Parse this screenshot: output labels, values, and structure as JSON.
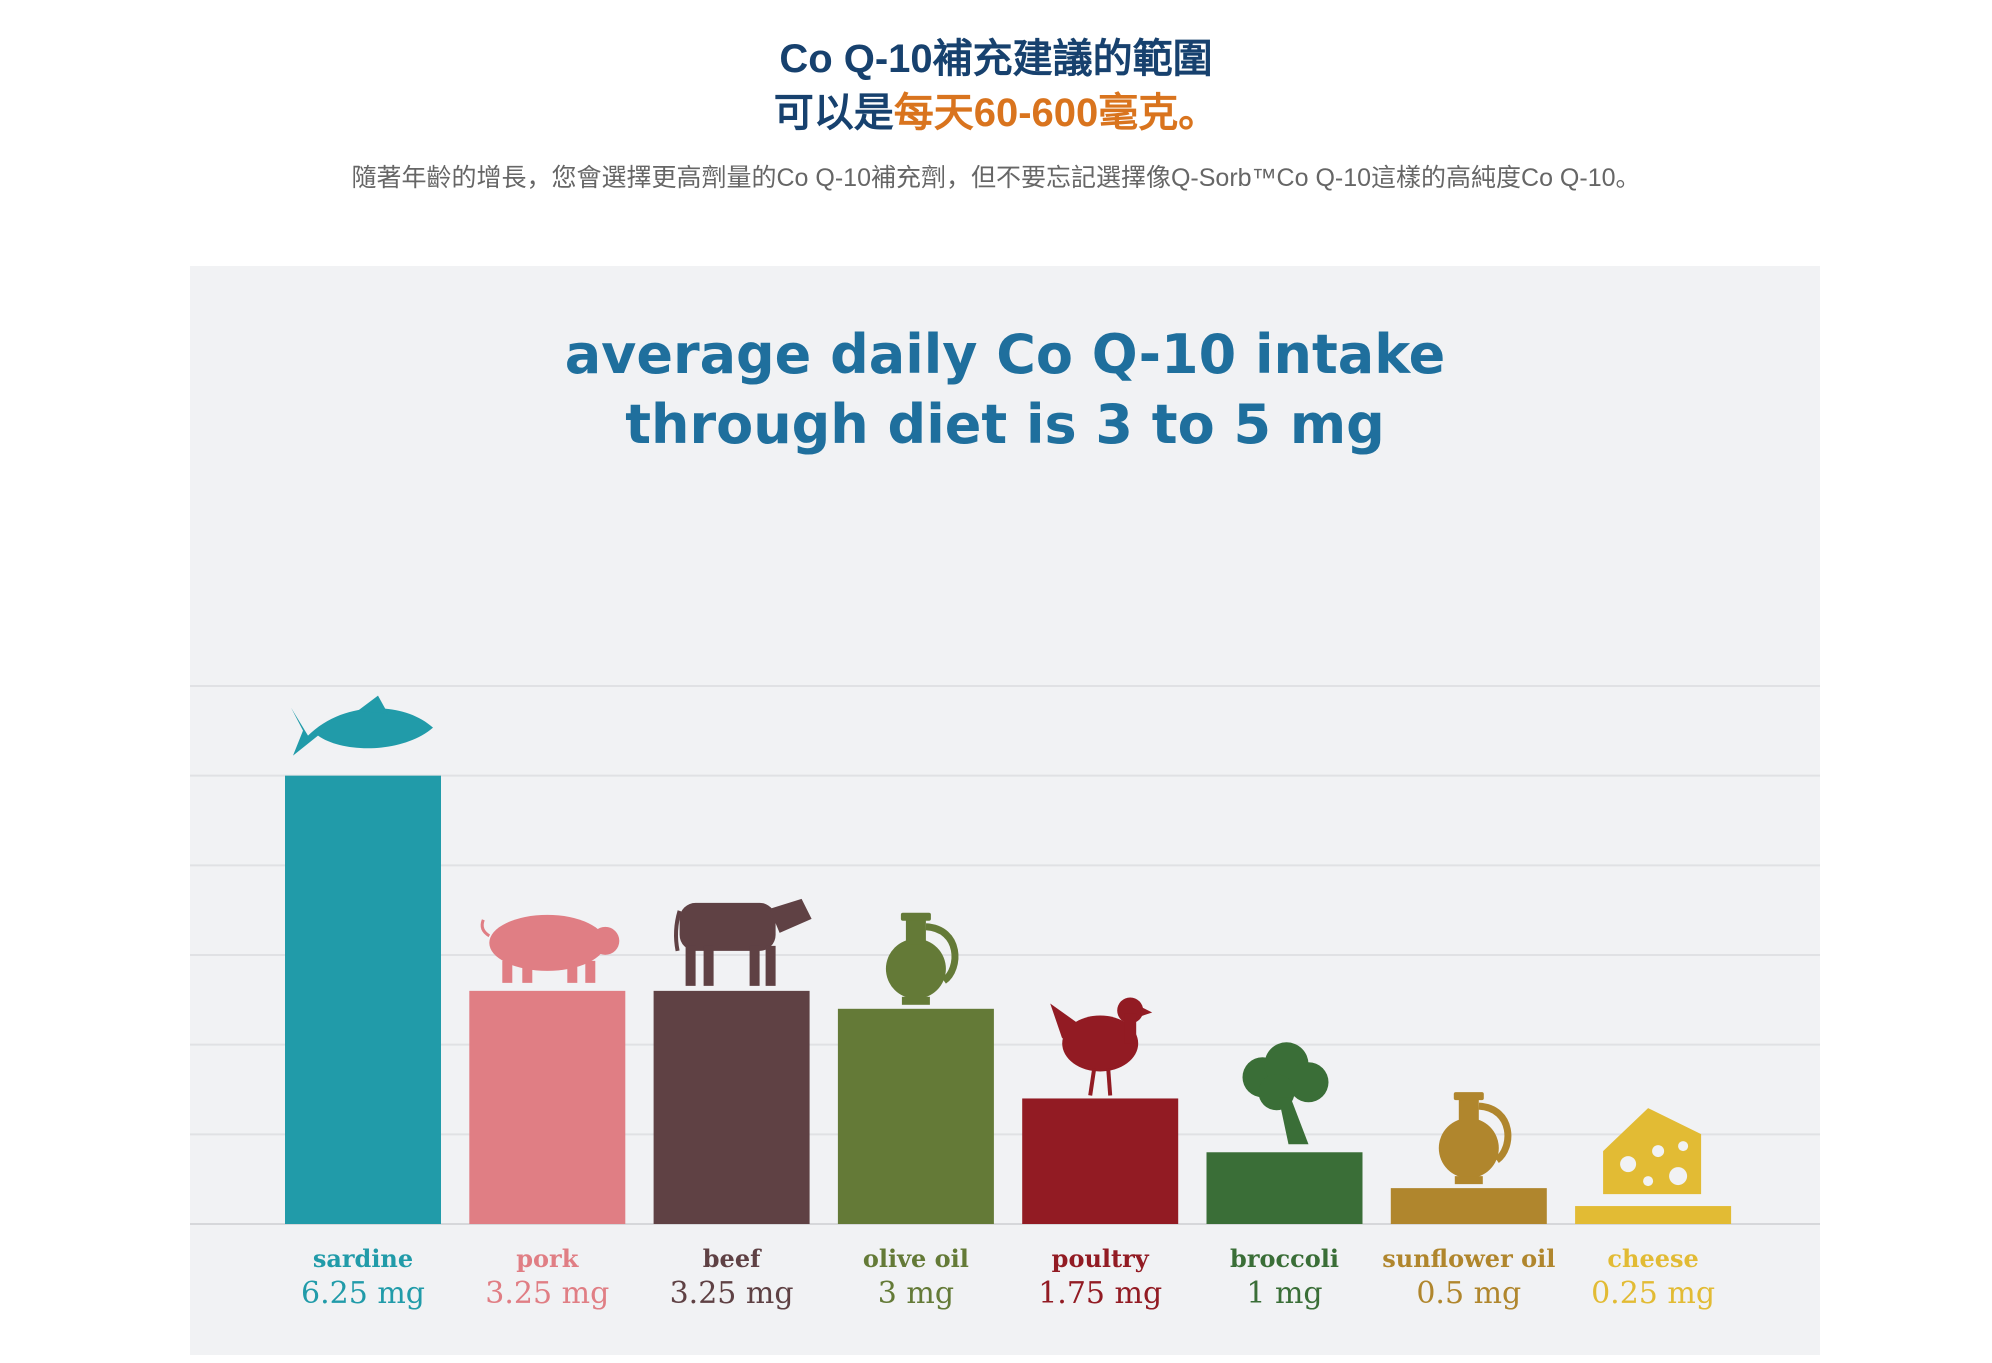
{
  "header": {
    "title_line1": "Co Q-10補充建議的範圍",
    "title_line2_prefix": "可以是",
    "title_line2_highlight": "每天60-600毫克",
    "title_line2_suffix": "。",
    "intro": "隨著年齡的增長，您會選擇更高劑量的Co Q-10補充劑，但不要忘記選擇像Q-Sorb™Co Q-10這樣的高純度Co Q-10。"
  },
  "colors": {
    "title": "#17416e",
    "highlight": "#d9741e",
    "chart_title": "#1f6f9d"
  },
  "chart_data": {
    "type": "bar",
    "title_line1": "average daily Co Q-10 intake",
    "title_line2": "through diet is 3 to 5 mg",
    "ylim": [
      0,
      7.5
    ],
    "grid": true,
    "categories": [
      "sardine",
      "pork",
      "beef",
      "olive oil",
      "poultry",
      "broccoli",
      "sunflower oil",
      "cheese"
    ],
    "values": [
      6.25,
      3.25,
      3.25,
      3,
      1.75,
      1,
      0.5,
      0.25
    ],
    "value_labels": [
      "6.25 mg",
      "3.25 mg",
      "3.25 mg",
      "3 mg",
      "1.75 mg",
      "1 mg",
      "0.5 mg",
      "0.25 mg"
    ],
    "colors": [
      "#219ba9",
      "#e07e84",
      "#5f4144",
      "#647a37",
      "#921b23",
      "#3a6e37",
      "#b0862d",
      "#e2bb34"
    ],
    "icons": [
      "fish-icon",
      "pig-icon",
      "cow-icon",
      "olive-oil-jug-icon",
      "chicken-icon",
      "broccoli-icon",
      "oil-jug-icon",
      "cheese-icon"
    ]
  }
}
